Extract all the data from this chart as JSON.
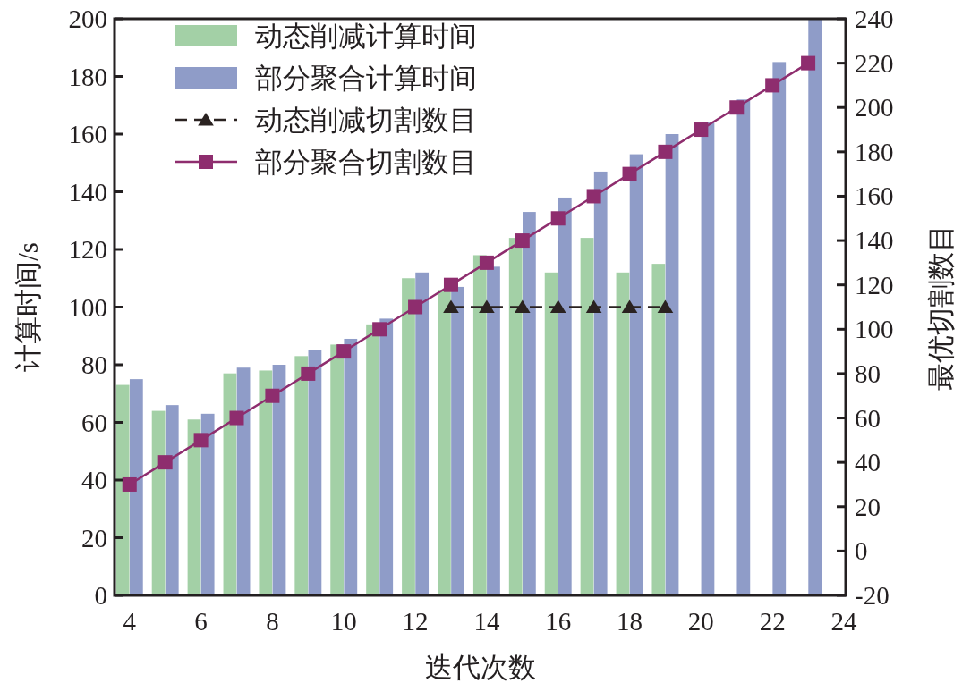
{
  "chart_data": {
    "type": "bar",
    "xlabel": "迭代次数",
    "ylabel": "计算时间/s",
    "y2label": "最优切割数目",
    "xlim": [
      3.58,
      24.05
    ],
    "xticks": [
      4,
      6,
      8,
      10,
      12,
      14,
      16,
      18,
      20,
      22,
      24
    ],
    "ylim": [
      0,
      200
    ],
    "yticks": [
      0,
      20,
      40,
      60,
      80,
      100,
      120,
      140,
      160,
      180,
      200
    ],
    "y2lim": [
      -20,
      240
    ],
    "y2ticks": [
      -20,
      0,
      20,
      40,
      60,
      80,
      100,
      120,
      140,
      160,
      180,
      200,
      220,
      240
    ],
    "legend": "top left",
    "grid": false,
    "series": [
      {
        "name": "动态削减计算时间",
        "color": "#a3d0a6",
        "x": [
          4,
          5,
          6,
          7,
          8,
          9,
          10,
          11,
          12,
          13,
          14,
          15,
          16,
          17,
          18,
          19
        ],
        "values": [
          73,
          64,
          61,
          77,
          78,
          83,
          87,
          94,
          110,
          106,
          118,
          124,
          112,
          124,
          112,
          115
        ]
      },
      {
        "name": "部分聚合计算时间",
        "color": "#8f9cc8",
        "x": [
          4,
          5,
          6,
          7,
          8,
          9,
          10,
          11,
          12,
          13,
          14,
          15,
          16,
          17,
          18,
          19,
          20,
          21,
          22,
          23
        ],
        "values": [
          75,
          66,
          63,
          79,
          80,
          85,
          89,
          96,
          112,
          107,
          114,
          133,
          138,
          147,
          153,
          160,
          164,
          172,
          185,
          200
        ]
      },
      {
        "name": "动态削减切割数目",
        "type": "line",
        "axis": "y2",
        "marker": "triangle",
        "line_style": "dashed",
        "color": "#2a2220",
        "x": [
          13,
          14,
          15,
          16,
          17,
          18,
          19
        ],
        "values": [
          110,
          110,
          110,
          110,
          110,
          110,
          110
        ]
      },
      {
        "name": "部分聚合切割数目",
        "type": "line",
        "axis": "y2",
        "marker": "square",
        "line_style": "solid",
        "color": "#8e2d6e",
        "x": [
          4,
          5,
          6,
          7,
          8,
          9,
          10,
          11,
          12,
          13,
          14,
          15,
          16,
          17,
          18,
          19,
          20,
          21,
          22,
          23
        ],
        "values": [
          30,
          40,
          50,
          60,
          70,
          80,
          90,
          100,
          110,
          120,
          130,
          140,
          150,
          160,
          170,
          180,
          190,
          200,
          210,
          220
        ]
      }
    ]
  }
}
